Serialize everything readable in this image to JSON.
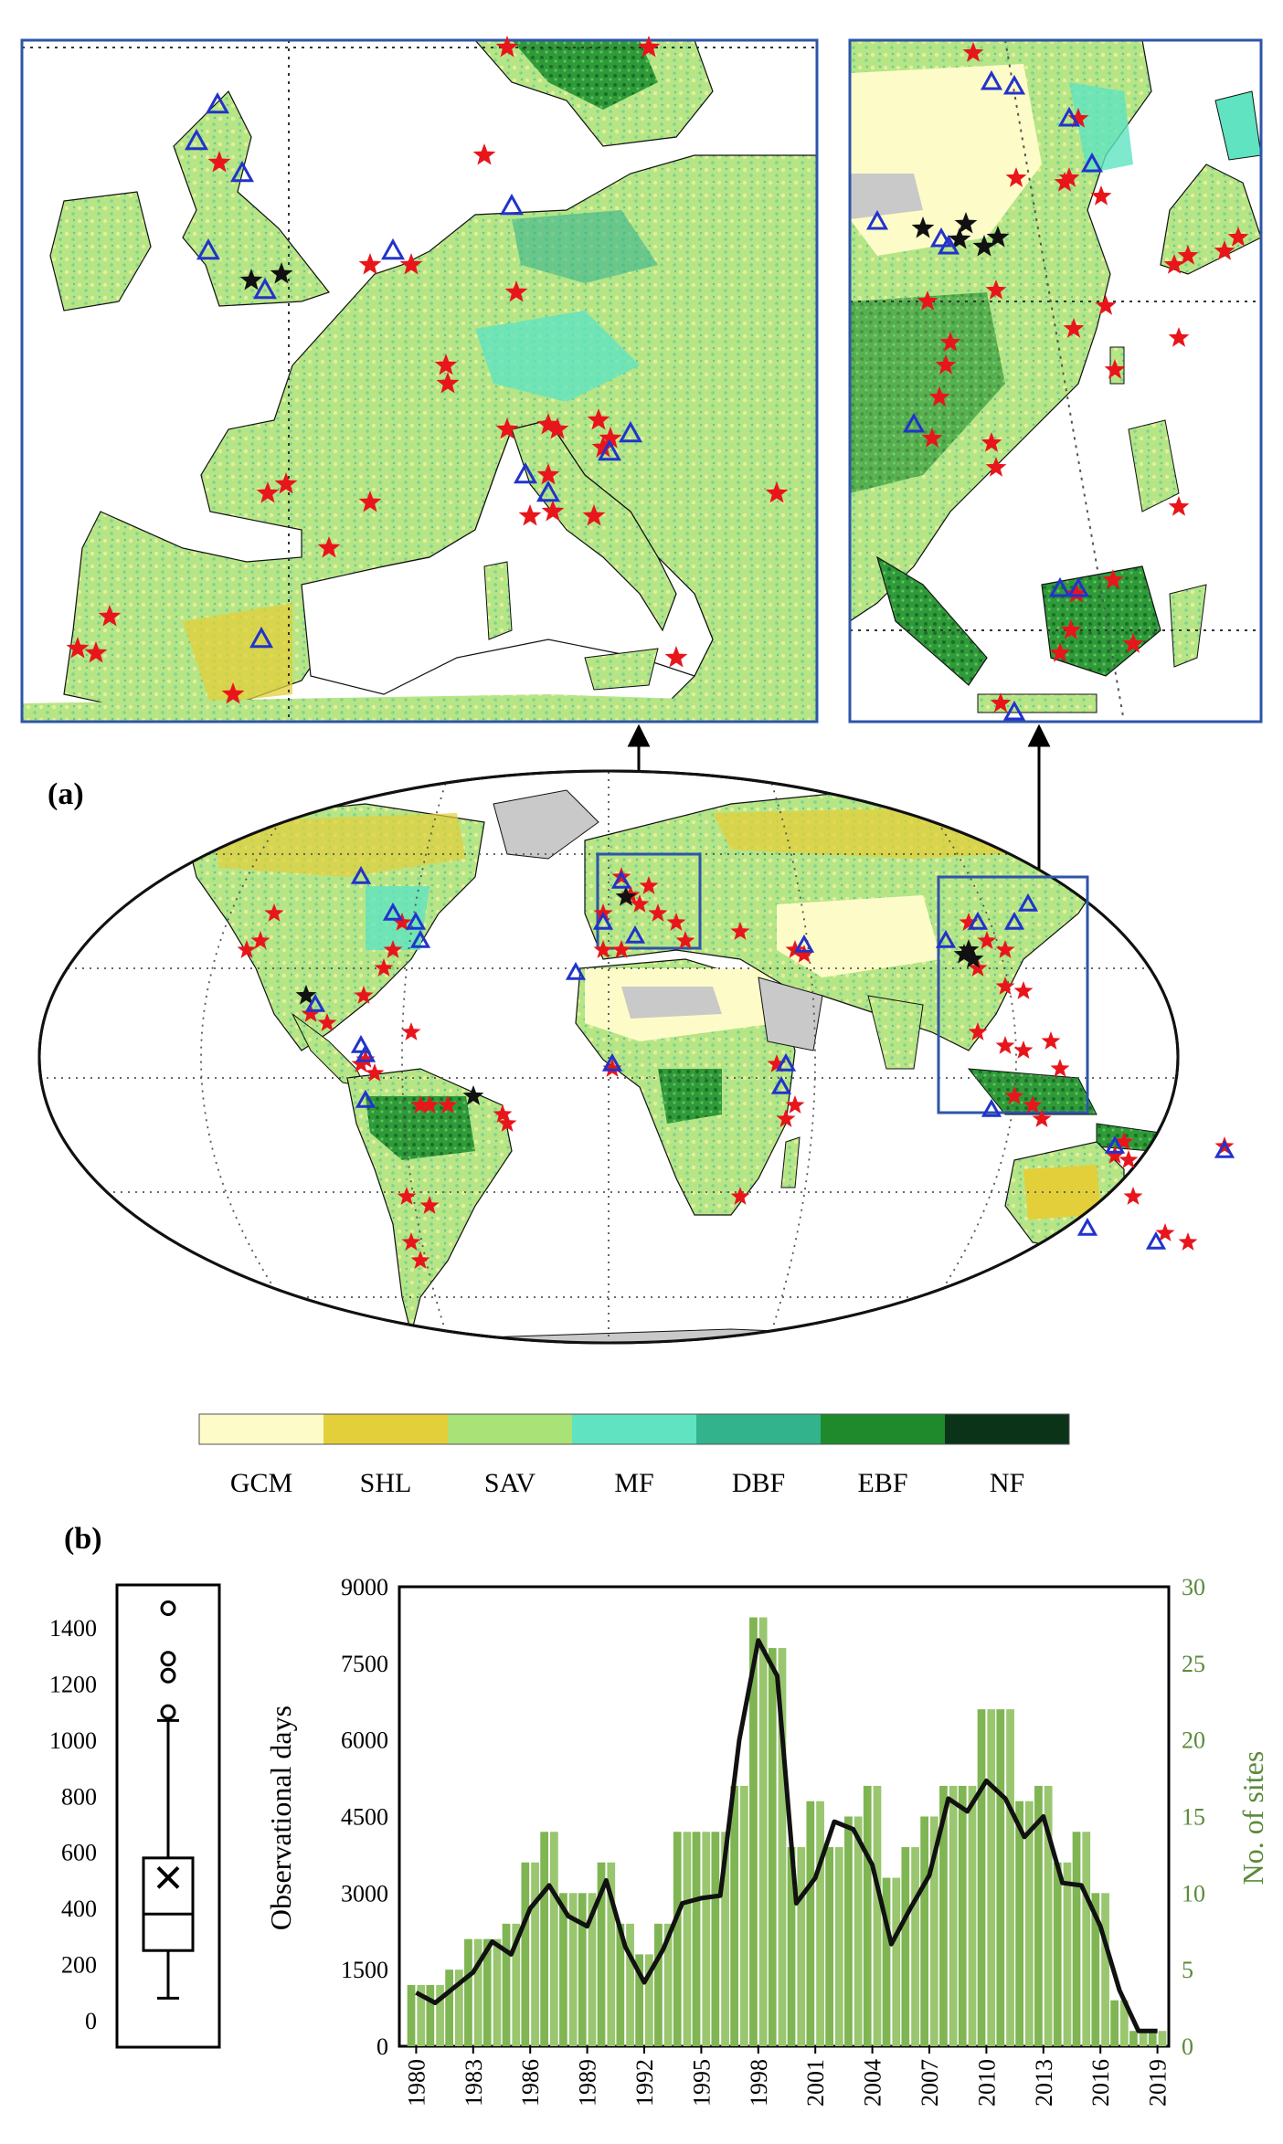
{
  "panel_labels": {
    "a": "(a)",
    "b": "(b)"
  },
  "legend": {
    "classes": [
      {
        "label": "GCM",
        "color": "#fdfcc8"
      },
      {
        "label": "SHL",
        "color": "#e3cf3a"
      },
      {
        "label": "SAV",
        "color": "#a9e277"
      },
      {
        "label": "MF",
        "color": "#5fe3c0"
      },
      {
        "label": "DBF",
        "color": "#33b38c"
      },
      {
        "label": "EBF",
        "color": "#1f8a2c"
      },
      {
        "label": "NF",
        "color": "#0b3317"
      }
    ]
  },
  "marker_colors": {
    "star_red": "#e8151b",
    "star_black": "#111111",
    "triangle_blue": "#2233cc"
  },
  "colors": {
    "inset_frame": "#2e55a8",
    "bars": "#7fb552",
    "line": "#111111",
    "right_axis_text": "#5b8a3a",
    "water": "#ffffff",
    "ice": "#c9c9c9"
  },
  "boxplot": {
    "y_ticks": [
      "0",
      "200",
      "400",
      "600",
      "800",
      "1000",
      "1200",
      "1400"
    ],
    "stats": {
      "min": 80,
      "q1": 250,
      "median": 380,
      "mean": 510,
      "q3": 580,
      "whisker_high": 1070,
      "outliers": [
        1100,
        1230,
        1290,
        1470
      ]
    }
  },
  "chart_data": {
    "type": "bar",
    "ylabel": "Observational days",
    "y2label": "No. of sites",
    "x_tick_labels": [
      "1980",
      "1983",
      "1986",
      "1989",
      "1992",
      "1995",
      "1998",
      "2001",
      "2004",
      "2007",
      "2010",
      "2013",
      "2016",
      "2019"
    ],
    "y_ticks": [
      "0",
      "1500",
      "3000",
      "4500",
      "6000",
      "7500",
      "9000"
    ],
    "y2_ticks": [
      "0",
      "5",
      "10",
      "15",
      "20",
      "25",
      "30"
    ],
    "ylim": [
      0,
      9000
    ],
    "y2lim": [
      0,
      30
    ],
    "years": [
      1980,
      1981,
      1982,
      1983,
      1984,
      1985,
      1986,
      1987,
      1988,
      1989,
      1990,
      1991,
      1992,
      1993,
      1994,
      1995,
      1996,
      1997,
      1998,
      1999,
      2000,
      2001,
      2002,
      2003,
      2004,
      2005,
      2006,
      2007,
      2008,
      2009,
      2010,
      2011,
      2012,
      2013,
      2014,
      2015,
      2016,
      2017,
      2018,
      2019
    ],
    "series": [
      {
        "name": "No. of sites",
        "type": "bar",
        "values": [
          4,
          4,
          5,
          7,
          7,
          8,
          12,
          14,
          10,
          10,
          12,
          8,
          6,
          8,
          14,
          14,
          14,
          17,
          28,
          26,
          13,
          16,
          13,
          15,
          17,
          11,
          13,
          15,
          17,
          17,
          22,
          22,
          16,
          17,
          12,
          14,
          10,
          3,
          1,
          1
        ]
      },
      {
        "name": "Observational days",
        "type": "line",
        "values": [
          1050,
          850,
          1150,
          1450,
          2050,
          1800,
          2700,
          3150,
          2550,
          2350,
          3250,
          1950,
          1250,
          1900,
          2800,
          2900,
          2950,
          6000,
          7950,
          7250,
          2800,
          3300,
          4400,
          4250,
          3550,
          2000,
          2700,
          3350,
          4850,
          4600,
          5200,
          4850,
          4100,
          4500,
          3200,
          3150,
          2350,
          1100,
          300,
          300
        ]
      }
    ]
  }
}
